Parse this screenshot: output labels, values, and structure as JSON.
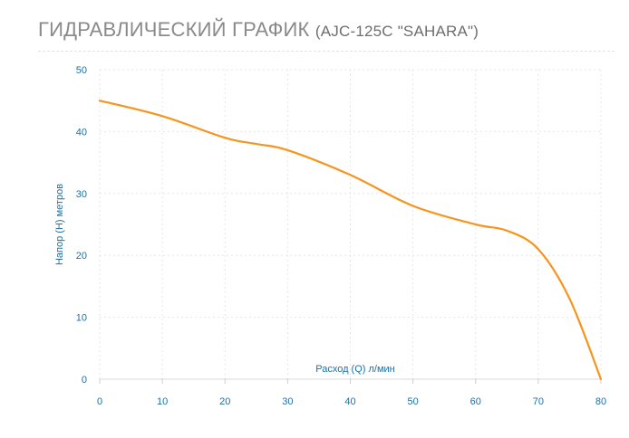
{
  "header": {
    "title": "ГИДРАВЛИЧЕСКИЙ ГРАФИК",
    "subtitle": "(AJC-125C \"SAHARA\")"
  },
  "colors": {
    "line": "#f7941d",
    "axis_text": "#1f6fa3",
    "grid": "#e6e6e6"
  },
  "chart_data": {
    "type": "line",
    "title": "ГИДРАВЛИЧЕСКИЙ ГРАФИК (AJC-125C \"SAHARA\")",
    "xlabel": "Расход (Q) л/мин",
    "ylabel": "Напор (H) метров",
    "xlim": [
      0,
      80
    ],
    "ylim": [
      0,
      50
    ],
    "xticks": [
      0,
      10,
      20,
      30,
      40,
      50,
      60,
      70,
      80
    ],
    "yticks": [
      0,
      10,
      20,
      30,
      40,
      50
    ],
    "grid": true,
    "series": [
      {
        "x": [
          0,
          10,
          20,
          25,
          30,
          40,
          50,
          60,
          65,
          70,
          75,
          80
        ],
        "y": [
          45,
          42.5,
          39,
          38,
          37,
          33,
          28,
          25,
          24,
          21,
          13,
          0
        ]
      }
    ]
  }
}
